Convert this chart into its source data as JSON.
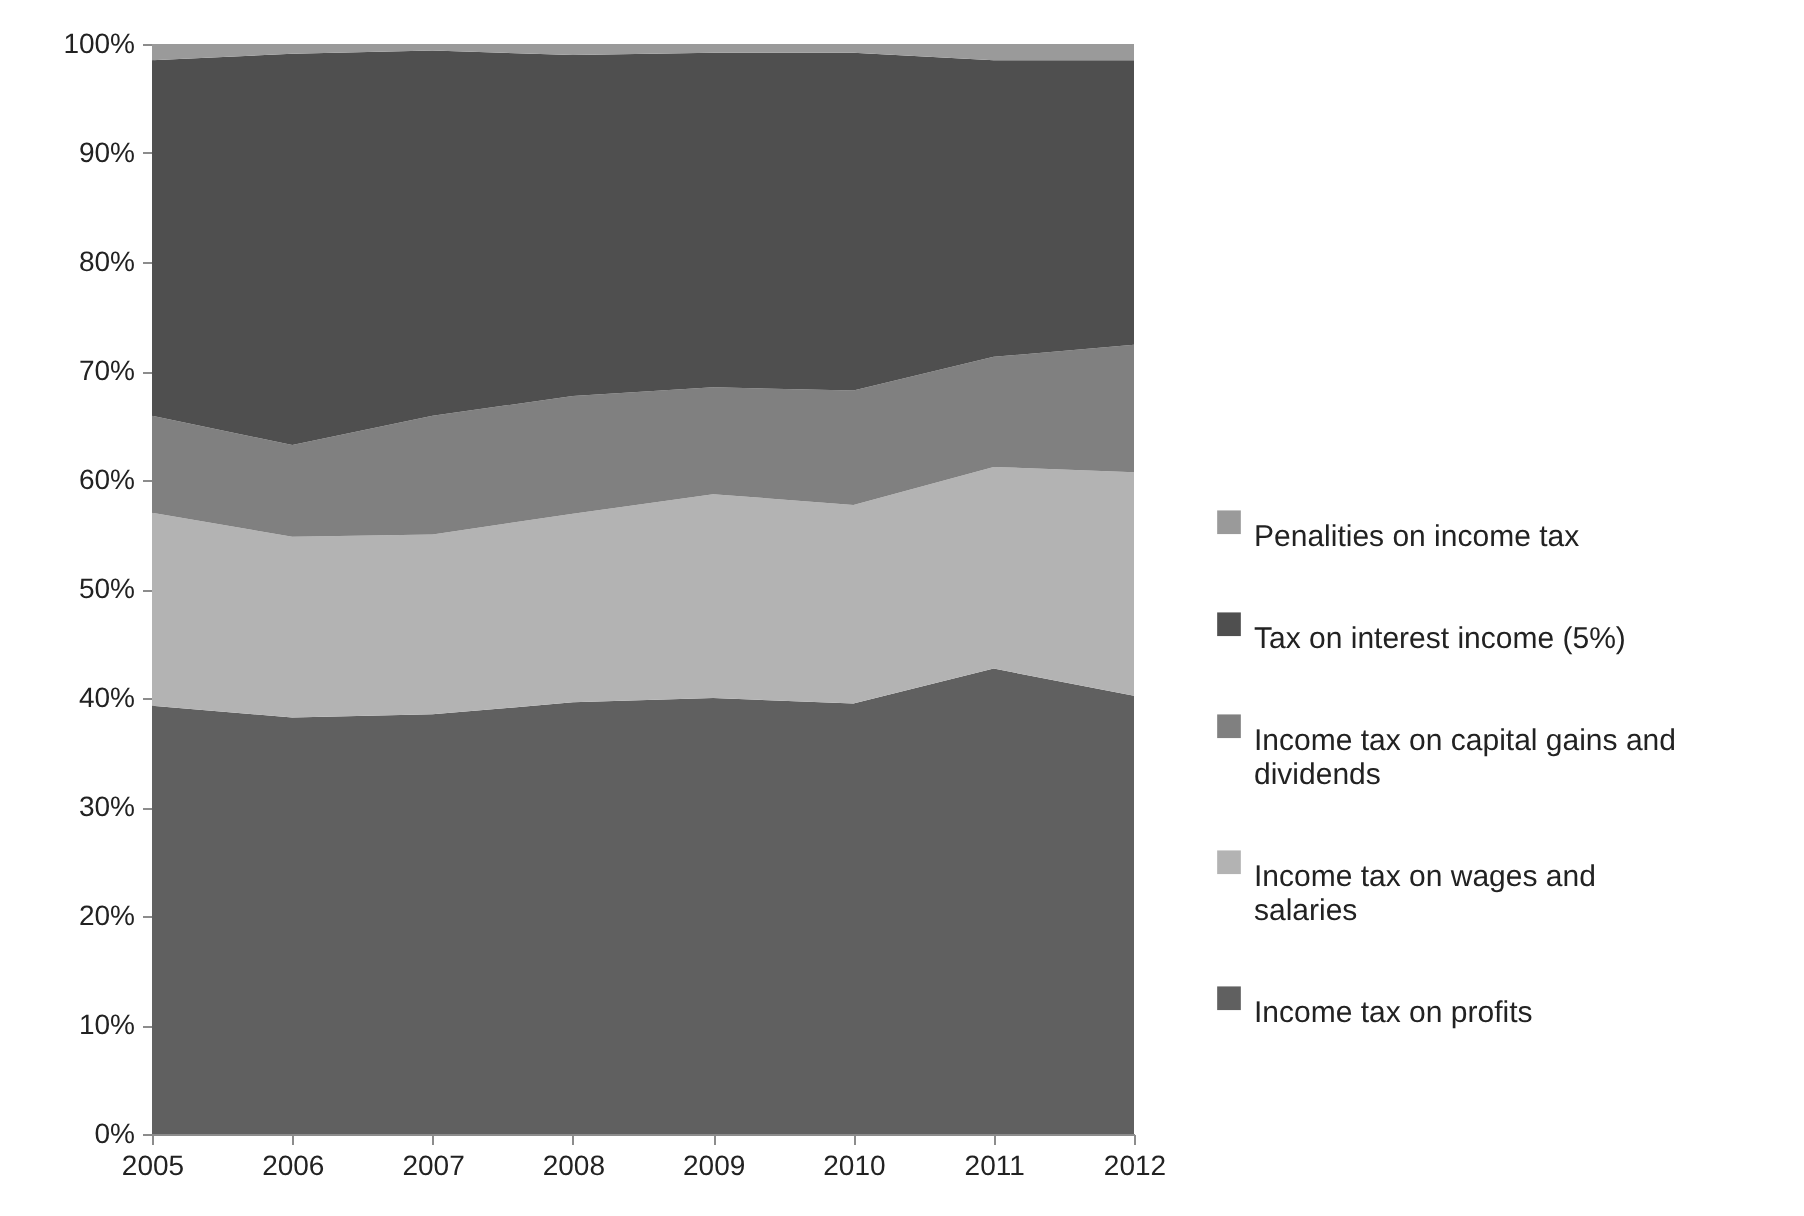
{
  "chart_data": {
    "type": "area",
    "stacked": true,
    "legend": "right",
    "categories": [
      "2005",
      "2006",
      "2007",
      "2008",
      "2009",
      "2010",
      "2011",
      "2012"
    ],
    "ylim": [
      0,
      100
    ],
    "yticks": [
      {
        "value": 0,
        "label": "0%"
      },
      {
        "value": 10,
        "label": "10%"
      },
      {
        "value": 20,
        "label": "20%"
      },
      {
        "value": 30,
        "label": "30%"
      },
      {
        "value": 40,
        "label": "40%"
      },
      {
        "value": 50,
        "label": "50%"
      },
      {
        "value": 60,
        "label": "60%"
      },
      {
        "value": 70,
        "label": "70%"
      },
      {
        "value": 80,
        "label": "80%"
      },
      {
        "value": 90,
        "label": "90%"
      },
      {
        "value": 100,
        "label": "100%"
      }
    ],
    "series": [
      {
        "name": "Income tax on profits",
        "color": "#606060",
        "values": [
          39.3,
          38.2,
          38.5,
          39.6,
          40.0,
          39.5,
          42.7,
          40.2
        ]
      },
      {
        "name": "Income tax on wages and salaries",
        "color": "#b3b3b3",
        "values": [
          17.7,
          16.6,
          16.5,
          17.3,
          18.7,
          18.2,
          18.5,
          20.5
        ]
      },
      {
        "name": "Income tax on capital gains and dividends",
        "color": "#808080",
        "values": [
          8.9,
          8.4,
          10.9,
          10.8,
          9.8,
          10.5,
          10.1,
          11.7
        ]
      },
      {
        "name": "Tax on interest income (5%)",
        "color": "#4f4f4f",
        "values": [
          32.6,
          35.9,
          33.5,
          31.3,
          30.7,
          31.0,
          27.2,
          26.1
        ]
      },
      {
        "name": "Penalities on income tax",
        "color": "#9a9a9a",
        "values": [
          1.5,
          0.9,
          0.6,
          1.0,
          0.8,
          0.8,
          1.5,
          1.5
        ]
      }
    ]
  }
}
